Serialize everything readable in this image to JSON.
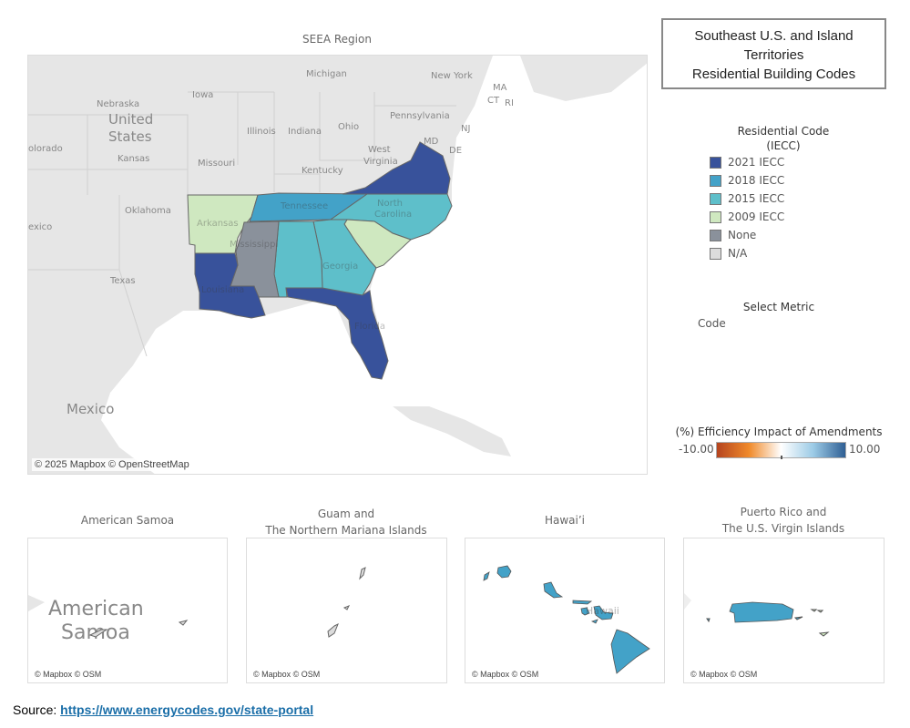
{
  "main_map": {
    "title": "SEEA Region",
    "attribution": "© 2025 Mapbox © OpenStreetMap",
    "background_labels": [
      "Nebraska",
      "United",
      "States",
      "Kansas",
      "Oklahoma",
      "Texas",
      "Mexico",
      "Iowa",
      "Illinois",
      "Indiana",
      "Ohio",
      "Michigan",
      "New York",
      "Pennsylvania",
      "Missouri",
      "Kentucky",
      "West",
      "Virginia",
      "MD",
      "NJ",
      "DE",
      "CT",
      "MA",
      "RI",
      "olorado",
      "exico"
    ],
    "states": [
      {
        "name": "Arkansas",
        "code": "2009 IECC"
      },
      {
        "name": "Tennessee",
        "code": "2018 IECC"
      },
      {
        "name": "Virginia",
        "code": "2021 IECC"
      },
      {
        "name": "North Carolina",
        "code": "2015 IECC"
      },
      {
        "name": "South Carolina",
        "code": "2009 IECC"
      },
      {
        "name": "Georgia",
        "code": "2015 IECC"
      },
      {
        "name": "Alabama",
        "code": "2015 IECC"
      },
      {
        "name": "Mississippi",
        "code": "None"
      },
      {
        "name": "Louisiana",
        "code": "2021 IECC"
      },
      {
        "name": "Florida",
        "code": "2021 IECC"
      }
    ],
    "state_labels": [
      "Arkansas",
      "Tennessee",
      "North",
      "Carolina",
      "Mississippi",
      "Georgia",
      "Louisiana",
      "Florida"
    ]
  },
  "title_box": {
    "line1": "Southeast U.S. and Island",
    "line2": "Territories",
    "line3": "Residential Building Codes"
  },
  "legend": {
    "title_line1": "Residential Code",
    "title_line2": "(IECC)",
    "items": [
      {
        "label": "2021 IECC",
        "color": "#38529b"
      },
      {
        "label": "2018 IECC",
        "color": "#43a2c8"
      },
      {
        "label": "2015 IECC",
        "color": "#5ebfca"
      },
      {
        "label": "2009 IECC",
        "color": "#cfe8c0"
      },
      {
        "label": "None",
        "color": "#8a919b"
      },
      {
        "label": "N/A",
        "color": "#dcdcdc"
      }
    ]
  },
  "metric": {
    "title": "Select Metric",
    "value": "Code"
  },
  "gradient_legend": {
    "title": "(%) Efficiency Impact of Amendments",
    "min": "-10.00",
    "max": "10.00",
    "colors": [
      "#b5441f",
      "#f08a2a",
      "#ffffff",
      "#9ccbe6",
      "#2f5f94"
    ]
  },
  "insets": [
    {
      "title_line1": "American Samoa",
      "title_line2": "",
      "attribution": "© Mapbox © OSM",
      "map_label_line1": "American",
      "map_label_line2": "Samoa",
      "code": "N/A"
    },
    {
      "title_line1": "Guam and",
      "title_line2": "The Northern Mariana Islands",
      "attribution": "© Mapbox © OSM",
      "code": "N/A"
    },
    {
      "title_line1": "Hawai’i",
      "title_line2": "",
      "attribution": "© Mapbox © OSM",
      "map_label": "Hawaii",
      "code": "2018 IECC"
    },
    {
      "title_line1": "Puerto Rico and",
      "title_line2": "The U.S. Virgin Islands",
      "attribution": "© Mapbox © OSM",
      "code": "2018 IECC"
    }
  ],
  "source": {
    "label": "Source: ",
    "link": "https://www.energycodes.gov/state-portal"
  }
}
